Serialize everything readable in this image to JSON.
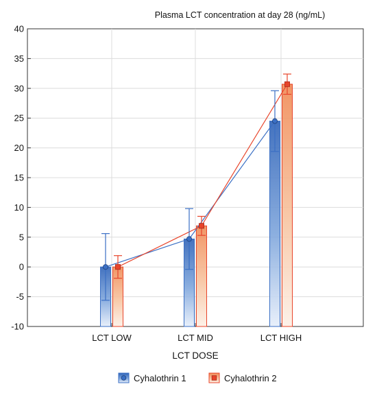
{
  "chart_data": {
    "type": "bar",
    "title": "Plasma LCT concentration at day 28 (ng/mL)",
    "xlabel": "LCT DOSE",
    "ylabel": "",
    "categories": [
      "LCT LOW",
      "LCT MID",
      "LCT HIGH"
    ],
    "ylim": [
      -10,
      40
    ],
    "yticks": [
      -10,
      -5,
      0,
      5,
      10,
      15,
      20,
      25,
      30,
      35,
      40
    ],
    "grid": true,
    "legend_position": "bottom",
    "series": [
      {
        "name": "Cyhalothrin 1",
        "color": "#3a6fc4",
        "values": [
          0,
          4.7,
          24.5
        ],
        "err_low": [
          -5.6,
          -0.4,
          19.4
        ],
        "err_high": [
          5.6,
          9.8,
          29.6
        ]
      },
      {
        "name": "Cyhalothrin 2",
        "color": "#e8442a",
        "values": [
          0,
          6.9,
          30.7
        ],
        "err_low": [
          -1.9,
          5.3,
          29.0
        ],
        "err_high": [
          1.9,
          8.5,
          32.4
        ]
      }
    ]
  }
}
